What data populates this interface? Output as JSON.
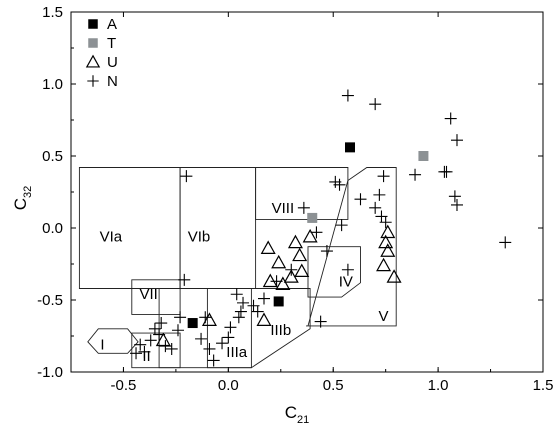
{
  "chart_data": {
    "type": "scatter",
    "xlabel": "C",
    "xlabel_sub": "21",
    "ylabel": "C",
    "ylabel_sub": "32",
    "xlim": [
      -0.75,
      1.5
    ],
    "ylim": [
      -1.0,
      1.5
    ],
    "x_ticks": [
      -0.5,
      0.0,
      0.5,
      1.0,
      1.5
    ],
    "x_tick_labels": [
      "-0.5",
      "0.0",
      "0.5",
      "1.0",
      "1.5"
    ],
    "y_ticks": [
      -1.0,
      -0.5,
      0.0,
      0.5,
      1.0,
      1.5
    ],
    "y_tick_labels": [
      "-1.0",
      "-0.5",
      "0.0",
      "0.5",
      "1.0",
      "1.5"
    ],
    "grid": false,
    "legend_position": "top-left",
    "series": [
      {
        "name": "A",
        "marker": "filled-square",
        "color": "#000000",
        "points": [
          [
            0.58,
            0.56
          ],
          [
            0.24,
            -0.51
          ],
          [
            -0.17,
            -0.66
          ]
        ]
      },
      {
        "name": "T",
        "marker": "filled-square",
        "color": "#8c9194",
        "points": [
          [
            0.93,
            0.5
          ],
          [
            0.4,
            0.07
          ]
        ]
      },
      {
        "name": "U",
        "marker": "open-triangle",
        "color": "#000000",
        "points": [
          [
            0.76,
            -0.03
          ],
          [
            0.75,
            -0.1
          ],
          [
            0.76,
            -0.16
          ],
          [
            0.79,
            -0.34
          ],
          [
            0.74,
            -0.26
          ],
          [
            0.19,
            -0.14
          ],
          [
            0.32,
            -0.1
          ],
          [
            0.39,
            -0.06
          ],
          [
            0.34,
            -0.19
          ],
          [
            0.24,
            -0.24
          ],
          [
            0.3,
            -0.34
          ],
          [
            0.35,
            -0.3
          ],
          [
            0.2,
            -0.37
          ],
          [
            0.26,
            -0.39
          ],
          [
            0.17,
            -0.64
          ],
          [
            -0.09,
            -0.64
          ],
          [
            -0.31,
            -0.78
          ]
        ]
      },
      {
        "name": "N",
        "marker": "plus",
        "color": "#000000",
        "points": [
          [
            0.57,
            0.92
          ],
          [
            0.7,
            0.86
          ],
          [
            1.06,
            0.76
          ],
          [
            1.09,
            0.61
          ],
          [
            1.03,
            0.39
          ],
          [
            1.04,
            0.39
          ],
          [
            1.08,
            0.22
          ],
          [
            1.09,
            0.16
          ],
          [
            1.32,
            -0.1
          ],
          [
            0.89,
            0.37
          ],
          [
            0.74,
            0.36
          ],
          [
            0.72,
            0.23
          ],
          [
            0.63,
            0.2
          ],
          [
            0.51,
            0.32
          ],
          [
            0.53,
            0.3
          ],
          [
            0.73,
            0.08
          ],
          [
            0.75,
            0.04
          ],
          [
            0.7,
            0.14
          ],
          [
            0.54,
            0.02
          ],
          [
            0.36,
            0.14
          ],
          [
            0.47,
            -0.16
          ],
          [
            0.57,
            -0.29
          ],
          [
            0.42,
            -0.03
          ],
          [
            0.44,
            -0.65
          ],
          [
            -0.2,
            0.36
          ],
          [
            -0.21,
            -0.36
          ],
          [
            -0.23,
            -0.62
          ],
          [
            -0.32,
            -0.66
          ],
          [
            -0.35,
            -0.7
          ],
          [
            -0.33,
            -0.74
          ],
          [
            -0.37,
            -0.78
          ],
          [
            -0.42,
            -0.81
          ],
          [
            -0.44,
            -0.87
          ],
          [
            -0.4,
            -0.86
          ],
          [
            -0.3,
            -0.82
          ],
          [
            -0.27,
            -0.84
          ],
          [
            -0.24,
            -0.71
          ],
          [
            -0.11,
            -0.62
          ],
          [
            -0.13,
            -0.77
          ],
          [
            -0.09,
            -0.84
          ],
          [
            -0.07,
            -0.92
          ],
          [
            -0.03,
            -0.8
          ],
          [
            0.0,
            -0.76
          ],
          [
            0.01,
            -0.69
          ],
          [
            0.05,
            -0.62
          ],
          [
            0.06,
            -0.58
          ],
          [
            0.07,
            -0.52
          ],
          [
            0.04,
            -0.46
          ],
          [
            0.12,
            -0.54
          ],
          [
            0.17,
            -0.49
          ],
          [
            0.14,
            -0.58
          ],
          [
            0.23,
            -0.37
          ],
          [
            0.3,
            -0.29
          ]
        ]
      }
    ],
    "regions": [
      {
        "label": "I",
        "label_at": [
          -0.6,
          -0.81
        ],
        "polygon": [
          [
            -0.62,
            -0.87
          ],
          [
            -0.48,
            -0.87
          ],
          [
            -0.43,
            -0.79
          ],
          [
            -0.48,
            -0.7
          ],
          [
            -0.62,
            -0.7
          ],
          [
            -0.67,
            -0.79
          ]
        ]
      },
      {
        "label": "II",
        "label_at": [
          -0.39,
          -0.89
        ],
        "polygon": [
          [
            -0.46,
            -0.97
          ],
          [
            -0.23,
            -0.97
          ],
          [
            -0.23,
            -0.73
          ],
          [
            -0.46,
            -0.73
          ]
        ]
      },
      {
        "label": "IIIa",
        "label_at": [
          0.04,
          -0.86
        ],
        "polygon": [
          [
            -0.33,
            -0.97
          ],
          [
            0.11,
            -0.97
          ],
          [
            0.11,
            -0.42
          ],
          [
            -0.33,
            -0.42
          ]
        ]
      },
      {
        "label": "IIIb",
        "label_at": [
          0.25,
          -0.71
        ],
        "polygon": [
          [
            -0.1,
            -0.97
          ],
          [
            0.11,
            -0.97
          ],
          [
            0.39,
            -0.7
          ],
          [
            0.39,
            -0.42
          ],
          [
            -0.1,
            -0.42
          ]
        ]
      },
      {
        "label": "IV",
        "label_at": [
          0.56,
          -0.37
        ],
        "polygon": [
          [
            0.38,
            -0.48
          ],
          [
            0.54,
            -0.48
          ],
          [
            0.63,
            -0.38
          ],
          [
            0.63,
            -0.13
          ],
          [
            0.38,
            -0.13
          ]
        ]
      },
      {
        "label": "V",
        "label_at": [
          0.74,
          -0.61
        ],
        "polygon": [
          [
            0.37,
            -0.68
          ],
          [
            0.8,
            -0.68
          ],
          [
            0.8,
            0.42
          ],
          [
            0.66,
            0.42
          ],
          [
            0.57,
            0.33
          ],
          [
            0.38,
            -0.68
          ]
        ]
      },
      {
        "label": "VIa",
        "label_at": [
          -0.56,
          -0.06
        ],
        "polygon": [
          [
            -0.71,
            -0.42
          ],
          [
            -0.23,
            -0.42
          ],
          [
            -0.23,
            0.42
          ],
          [
            -0.71,
            0.42
          ]
        ]
      },
      {
        "label": "VIb",
        "label_at": [
          -0.14,
          -0.06
        ],
        "polygon": [
          [
            -0.23,
            -0.42
          ],
          [
            0.13,
            -0.42
          ],
          [
            0.13,
            0.42
          ],
          [
            -0.23,
            0.42
          ]
        ]
      },
      {
        "label": "VII",
        "label_at": [
          -0.38,
          -0.46
        ],
        "polygon": [
          [
            -0.46,
            -0.6
          ],
          [
            -0.23,
            -0.6
          ],
          [
            -0.23,
            -0.36
          ],
          [
            -0.46,
            -0.36
          ]
        ]
      },
      {
        "label": "VIII",
        "label_at": [
          0.26,
          0.14
        ],
        "polygon": [
          [
            0.13,
            0.06
          ],
          [
            0.57,
            0.06
          ],
          [
            0.57,
            0.42
          ],
          [
            0.13,
            0.42
          ]
        ]
      }
    ]
  }
}
